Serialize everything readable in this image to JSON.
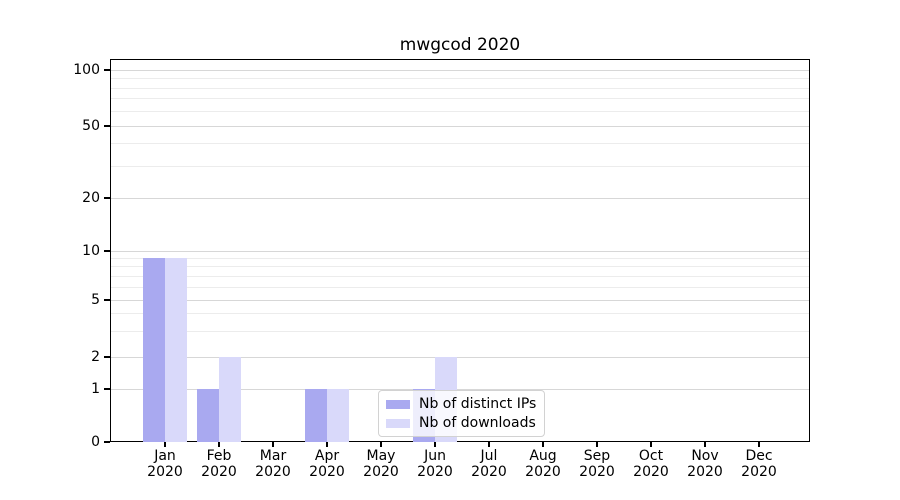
{
  "title": "mwgcod 2020",
  "chart_data": {
    "type": "bar",
    "title": "mwgcod 2020",
    "categories": [
      "Jan",
      "Feb",
      "Mar",
      "Apr",
      "May",
      "Jun",
      "Jul",
      "Aug",
      "Sep",
      "Oct",
      "Nov",
      "Dec"
    ],
    "category_year": "2020",
    "series": [
      {
        "name": "Nb of distinct IPs",
        "color": "#a9a9f0",
        "values": [
          9,
          1,
          0,
          1,
          0,
          1,
          0,
          0,
          0,
          0,
          0,
          0
        ]
      },
      {
        "name": "Nb of downloads",
        "color": "#d9d9fa",
        "values": [
          9,
          2,
          0,
          1,
          0,
          2,
          0,
          0,
          0,
          0,
          0,
          0
        ]
      }
    ],
    "xlabel": "",
    "ylabel": "",
    "y_axis": {
      "scale": "symlog",
      "major_ticks": [
        0,
        1,
        2,
        5,
        10,
        20,
        50,
        100
      ],
      "minor_ticks": [
        3,
        4,
        6,
        7,
        8,
        9,
        30,
        40,
        60,
        70,
        80,
        90
      ],
      "ylim": [
        0,
        110
      ]
    },
    "grid": "horizontal",
    "legend_position": "lower-center",
    "colors": {
      "grid_major": "#d7d7d7",
      "grid_minor": "#ececec",
      "axis": "#000000",
      "background": "#ffffff"
    }
  }
}
